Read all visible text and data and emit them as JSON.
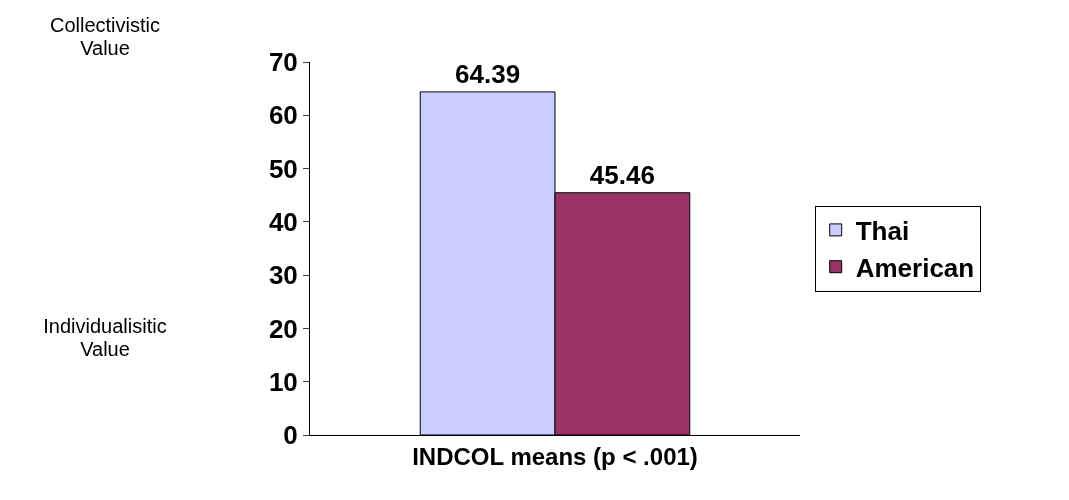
{
  "chart_data": {
    "type": "bar",
    "categories": [
      null
    ],
    "series": [
      {
        "name": "Thai",
        "color": "#ccccff",
        "values": [
          64.39
        ]
      },
      {
        "name": "American",
        "color": "#993366",
        "values": [
          45.46
        ]
      }
    ],
    "ylim": [
      0,
      70
    ],
    "yticks": [
      0,
      10,
      20,
      30,
      40,
      50,
      60,
      70
    ],
    "grid": false,
    "legend": "right",
    "data_labels": true,
    "xlabel": "INDCOL means (p < .001)",
    "annotations": [
      "Collectivistic Value",
      "Individualisitic Value"
    ]
  }
}
